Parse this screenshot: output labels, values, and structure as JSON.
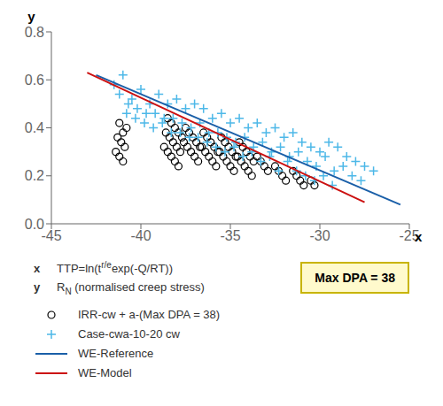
{
  "chart_data": {
    "type": "scatter",
    "x_label": "x",
    "y_label": "y",
    "xlim": [
      -45,
      -25
    ],
    "ylim": [
      0.0,
      0.8
    ],
    "xticks": [
      -45,
      -40,
      -35,
      -30,
      -25
    ],
    "yticks": [
      {
        "value": 0.0,
        "label": "0.0"
      },
      0.2,
      0.4,
      0.6,
      0.8
    ],
    "grid": false,
    "legend": "bottom",
    "series": [
      {
        "name": "IRR-cw + a-(Max DPA = 38)",
        "type": "scatter",
        "marker": "circle",
        "color": "black",
        "x": [
          -41.2,
          -41.0,
          -40.8,
          -41.3,
          -41.1,
          -40.9,
          -41.4,
          -41.2,
          -41.0,
          -38.5,
          -38.3,
          -38.1,
          -37.9,
          -37.7,
          -38.6,
          -38.4,
          -38.2,
          -38.0,
          -37.8,
          -38.7,
          -38.5,
          -38.3,
          -38.1,
          -37.9,
          -37.5,
          -37.3,
          -37.1,
          -36.9,
          -36.7,
          -37.6,
          -37.4,
          -37.2,
          -37.0,
          -36.8,
          -36.5,
          -36.3,
          -36.1,
          -35.9,
          -35.7,
          -36.6,
          -36.4,
          -36.2,
          -36.0,
          -35.8,
          -35.5,
          -35.3,
          -35.1,
          -34.9,
          -34.7,
          -35.6,
          -35.4,
          -35.2,
          -35.0,
          -34.8,
          -34.5,
          -34.3,
          -34.1,
          -33.9,
          -33.7,
          -34.6,
          -34.4,
          -34.2,
          -34.0,
          -33.8,
          -33.5,
          -33.3,
          -33.1,
          -32.9,
          -32.5,
          -32.3,
          -32.1,
          -31.9,
          -31.5,
          -31.3,
          -31.1,
          -30.9,
          -30.5,
          -30.3
        ],
        "values": [
          0.42,
          0.38,
          0.4,
          0.36,
          0.34,
          0.32,
          0.3,
          0.28,
          0.26,
          0.44,
          0.42,
          0.4,
          0.38,
          0.36,
          0.38,
          0.36,
          0.34,
          0.32,
          0.3,
          0.32,
          0.3,
          0.28,
          0.26,
          0.24,
          0.4,
          0.38,
          0.36,
          0.34,
          0.32,
          0.34,
          0.32,
          0.3,
          0.28,
          0.26,
          0.38,
          0.36,
          0.34,
          0.32,
          0.3,
          0.32,
          0.3,
          0.28,
          0.26,
          0.24,
          0.36,
          0.34,
          0.32,
          0.3,
          0.28,
          0.3,
          0.28,
          0.26,
          0.24,
          0.22,
          0.34,
          0.32,
          0.3,
          0.28,
          0.26,
          0.28,
          0.26,
          0.24,
          0.22,
          0.2,
          0.28,
          0.26,
          0.24,
          0.22,
          0.24,
          0.22,
          0.2,
          0.18,
          0.22,
          0.2,
          0.18,
          0.16,
          0.18,
          0.16
        ]
      },
      {
        "name": "Case-cwa-10-20 cw",
        "type": "scatter",
        "marker": "plus",
        "color": "#4db8e8",
        "x": [
          -41.5,
          -41.0,
          -40.5,
          -40.0,
          -39.5,
          -39.0,
          -38.5,
          -38.0,
          -37.5,
          -37.0,
          -36.5,
          -36.0,
          -35.5,
          -35.0,
          -34.5,
          -34.0,
          -33.5,
          -33.0,
          -32.5,
          -32.0,
          -31.5,
          -31.0,
          -30.5,
          -30.0,
          -29.5,
          -29.0,
          -28.5,
          -28.0,
          -27.5,
          -27.0,
          -41.2,
          -40.7,
          -40.2,
          -39.7,
          -39.2,
          -38.7,
          -38.2,
          -37.7,
          -37.2,
          -36.7,
          -36.2,
          -35.7,
          -35.2,
          -34.7,
          -34.2,
          -33.7,
          -33.2,
          -32.7,
          -32.2,
          -31.7,
          -31.2,
          -30.7,
          -30.2,
          -29.7,
          -29.2,
          -28.7,
          -28.2,
          -27.7,
          -40.8,
          -40.3,
          -39.8,
          -39.3,
          -38.8,
          -38.3,
          -37.8,
          -37.3,
          -36.8,
          -36.3,
          -35.8,
          -35.3,
          -34.8,
          -34.3,
          -33.8,
          -33.3,
          -32.8,
          -32.3,
          -31.8,
          -31.3,
          -30.8,
          -30.3,
          -29.8,
          -29.3
        ],
        "values": [
          0.58,
          0.62,
          0.52,
          0.56,
          0.5,
          0.54,
          0.5,
          0.52,
          0.48,
          0.5,
          0.48,
          0.44,
          0.46,
          0.42,
          0.44,
          0.4,
          0.42,
          0.38,
          0.4,
          0.36,
          0.38,
          0.34,
          0.32,
          0.3,
          0.34,
          0.32,
          0.28,
          0.26,
          0.24,
          0.22,
          0.54,
          0.5,
          0.48,
          0.46,
          0.46,
          0.44,
          0.44,
          0.42,
          0.4,
          0.42,
          0.38,
          0.38,
          0.36,
          0.34,
          0.36,
          0.32,
          0.34,
          0.3,
          0.32,
          0.28,
          0.3,
          0.26,
          0.24,
          0.28,
          0.22,
          0.24,
          0.2,
          0.18,
          0.46,
          0.44,
          0.42,
          0.4,
          0.42,
          0.38,
          0.38,
          0.36,
          0.36,
          0.34,
          0.32,
          0.3,
          0.32,
          0.28,
          0.3,
          0.26,
          0.28,
          0.22,
          0.26,
          0.22,
          0.2,
          0.18,
          0.2,
          0.16
        ]
      },
      {
        "name": "WE-Reference",
        "type": "line",
        "color": "#1a5fa8",
        "x": [
          -42.5,
          -25.5
        ],
        "values": [
          0.62,
          0.08
        ]
      },
      {
        "name": "WE-Model",
        "type": "line",
        "color": "#cc1111",
        "x": [
          -43.0,
          -27.5
        ],
        "values": [
          0.63,
          0.09
        ]
      }
    ],
    "annotations": [
      {
        "label": "x",
        "text": [
          "TTP=ln(t",
          "r/e",
          "exp(-Q/RT))"
        ]
      },
      {
        "label": "y",
        "text": [
          "R",
          "N",
          " (normalised creep stress)"
        ]
      },
      {
        "text": "Max DPA = 38",
        "colors": [
          "#fffacc",
          "#c8b400"
        ]
      }
    ]
  }
}
